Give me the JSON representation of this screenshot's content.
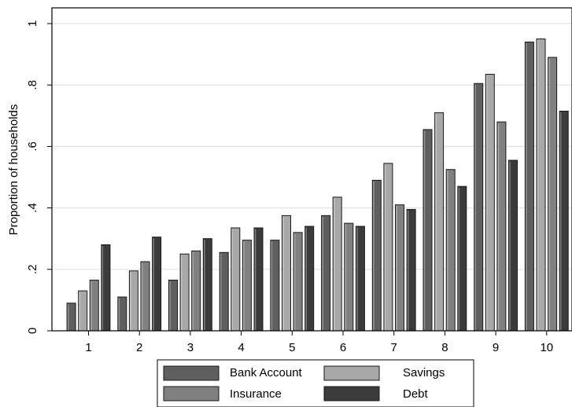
{
  "chart_data": {
    "type": "bar",
    "title": "",
    "xlabel": "",
    "ylabel": "Proportion of households",
    "ylim": [
      0,
      1
    ],
    "yticks": [
      {
        "value": 0,
        "label": "0"
      },
      {
        "value": 0.2,
        "label": ".2"
      },
      {
        "value": 0.4,
        "label": ".4"
      },
      {
        "value": 0.6,
        "label": ".6"
      },
      {
        "value": 0.8,
        "label": ".8"
      },
      {
        "value": 1,
        "label": "1"
      }
    ],
    "grid": true,
    "legend_position": "bottom",
    "categories": [
      "1",
      "2",
      "3",
      "4",
      "5",
      "6",
      "7",
      "8",
      "9",
      "10"
    ],
    "series": [
      {
        "name": "Bank Account",
        "color": "#5f5f5f",
        "values": [
          0.09,
          0.11,
          0.165,
          0.255,
          0.295,
          0.375,
          0.49,
          0.655,
          0.805,
          0.94
        ]
      },
      {
        "name": "Savings",
        "color": "#a8a8a8",
        "values": [
          0.13,
          0.195,
          0.25,
          0.335,
          0.375,
          0.435,
          0.545,
          0.71,
          0.835,
          0.95
        ]
      },
      {
        "name": "Insurance",
        "color": "#808080",
        "values": [
          0.165,
          0.225,
          0.26,
          0.295,
          0.32,
          0.35,
          0.41,
          0.525,
          0.68,
          0.89
        ]
      },
      {
        "name": "Debt",
        "color": "#3b3b3b",
        "values": [
          0.28,
          0.305,
          0.3,
          0.335,
          0.34,
          0.34,
          0.395,
          0.47,
          0.555,
          0.715
        ]
      }
    ]
  }
}
